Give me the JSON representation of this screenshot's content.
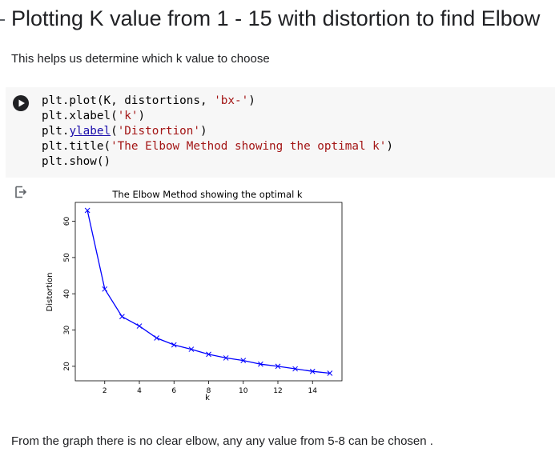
{
  "markdown": {
    "heading": "Plotting K value from 1 - 15 with distortion to find Elbow",
    "intro": "This helps us determine which k value to choose",
    "conclusion": "From the graph there is no clear elbow, any any value from 5-8 can be chosen ."
  },
  "code_cell": {
    "lines": {
      "l1_code": "plt.plot(K, distortions, ",
      "l1_str": "'bx-'",
      "l1_end": ")",
      "l2_code": "plt.xlabel(",
      "l2_str": "'k'",
      "l2_end": ")",
      "l3_obj": "plt.",
      "l3_link": "ylabel",
      "l3_paren": "(",
      "l3_str": "'Distortion'",
      "l3_end": ")",
      "l4_code": "plt.title(",
      "l4_str": "'The Elbow Method showing the optimal k'",
      "l4_end": ")",
      "l5_code": "plt.show()"
    }
  },
  "icons": {
    "run": "play-icon",
    "output": "output-arrow-icon"
  },
  "chart_data": {
    "type": "line",
    "title": "The Elbow Method showing the optimal k",
    "xlabel": "k",
    "ylabel": "Distortion",
    "x": [
      1,
      2,
      3,
      4,
      5,
      6,
      7,
      8,
      9,
      10,
      11,
      12,
      13,
      14,
      15
    ],
    "series": [
      {
        "values": [
          63.0,
          41.3,
          33.7,
          31.1,
          27.8,
          25.9,
          24.7,
          23.3,
          22.3,
          21.6,
          20.6,
          20.0,
          19.3,
          18.6,
          18.1
        ],
        "color": "#0000ff",
        "marker": "x"
      }
    ],
    "xlim": [
      0.3,
      15.7
    ],
    "ylim": [
      16.0,
      65.2
    ],
    "xticks": [
      2,
      4,
      6,
      8,
      10,
      12,
      14
    ],
    "yticks": [
      20,
      30,
      40,
      50,
      60
    ],
    "grid": false
  }
}
